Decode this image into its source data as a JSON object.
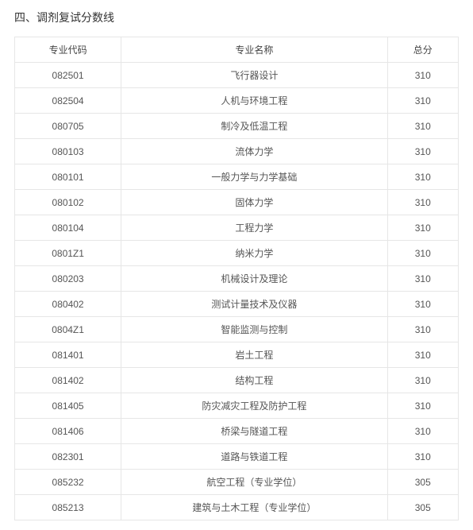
{
  "section_title": "四、调剂复试分数线",
  "table": {
    "columns": [
      "专业代码",
      "专业名称",
      "总分"
    ],
    "rows": [
      [
        "082501",
        "飞行器设计",
        "310"
      ],
      [
        "082504",
        "人机与环境工程",
        "310"
      ],
      [
        "080705",
        "制冷及低温工程",
        "310"
      ],
      [
        "080103",
        "流体力学",
        "310"
      ],
      [
        "080101",
        "一般力学与力学基础",
        "310"
      ],
      [
        "080102",
        "固体力学",
        "310"
      ],
      [
        "080104",
        "工程力学",
        "310"
      ],
      [
        "0801Z1",
        "纳米力学",
        "310"
      ],
      [
        "080203",
        "机械设计及理论",
        "310"
      ],
      [
        "080402",
        "测试计量技术及仪器",
        "310"
      ],
      [
        "0804Z1",
        "智能监测与控制",
        "310"
      ],
      [
        "081401",
        "岩土工程",
        "310"
      ],
      [
        "081402",
        "结构工程",
        "310"
      ],
      [
        "081405",
        "防灾减灾工程及防护工程",
        "310"
      ],
      [
        "081406",
        "桥梁与隧道工程",
        "310"
      ],
      [
        "082301",
        "道路与铁道工程",
        "310"
      ],
      [
        "085232",
        "航空工程（专业学位）",
        "305"
      ],
      [
        "085213",
        "建筑与土木工程（专业学位）",
        "305"
      ]
    ],
    "border_color": "#e6e6e6",
    "text_color": "#555555",
    "header_text_color": "#444444",
    "background_color": "#ffffff",
    "font_size": 12,
    "title_font_size": 14,
    "title_color": "#333333"
  }
}
